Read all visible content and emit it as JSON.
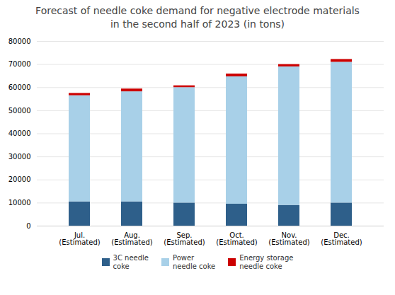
{
  "chart_data": {
    "type": "bar",
    "stacked": true,
    "title": "Forecast of needle coke demand for negative electrode materials\nin the second half of 2023 (in tons)",
    "categories": [
      "Jul.\n(Estimated)",
      "Aug.\n(Estimated)",
      "Sep.\n(Estimated)",
      "Oct.\n(Estimated)",
      "Nov.\n(Estimated)",
      "Dec.\n(Estimated)"
    ],
    "series": [
      {
        "name": "3C needle\ncoke",
        "color": "#2E5F8A",
        "values": [
          10500,
          10500,
          10000,
          9500,
          9000,
          10000
        ]
      },
      {
        "name": "Power\nneedle coke",
        "color": "#A8D0E8",
        "values": [
          46000,
          47700,
          50000,
          55200,
          60000,
          61000
        ]
      },
      {
        "name": "Energy storage\nneedle coke",
        "color": "#CC0000",
        "values": [
          1000,
          1200,
          800,
          1200,
          1000,
          1200
        ]
      }
    ],
    "ylim": [
      0,
      80000
    ],
    "yticks": [
      0,
      10000,
      20000,
      30000,
      40000,
      50000,
      60000,
      70000,
      80000
    ],
    "grid": true,
    "legend": "bottom"
  }
}
